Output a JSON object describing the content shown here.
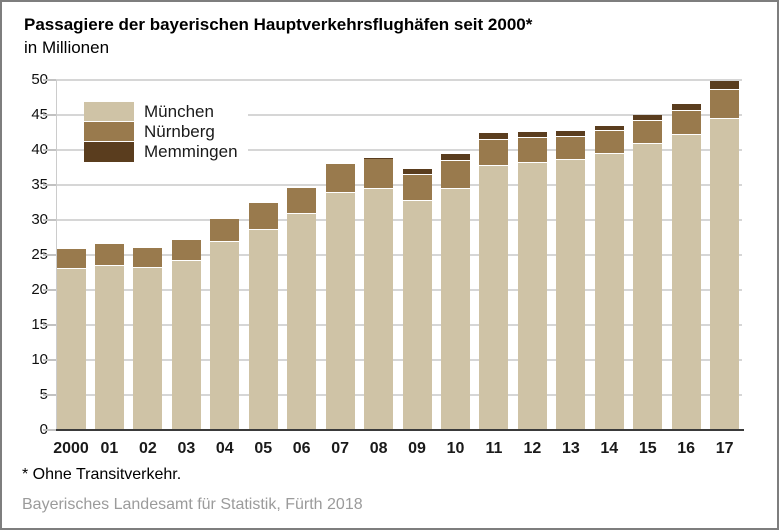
{
  "title": "Passagiere der bayerischen Hauptverkehrsflughäfen seit 2000*",
  "subtitle": "in Millionen",
  "footnote": "* Ohne Transitverkehr.",
  "source": "Bayerisches Landesamt für Statistik, Fürth 2018",
  "colors": {
    "muenchen": "#cfc3a6",
    "nuernberg": "#997a4d",
    "memmingen": "#5a3d1e",
    "gridline": "#d6d6d6",
    "axis": "#3a3a3a",
    "source_text": "#9b9b9b"
  },
  "chart_data": {
    "type": "bar",
    "stacked": true,
    "title": "Passagiere der bayerischen Hauptverkehrsflughäfen seit 2000*",
    "subtitle": "in Millionen",
    "unit": "Millionen Passagiere",
    "categories": [
      "2000",
      "01",
      "02",
      "03",
      "04",
      "05",
      "06",
      "07",
      "08",
      "09",
      "10",
      "11",
      "12",
      "13",
      "14",
      "15",
      "16",
      "17"
    ],
    "series": [
      {
        "name": "München",
        "color": "#cfc3a6",
        "values": [
          23.0,
          23.5,
          23.1,
          24.1,
          26.8,
          28.6,
          30.8,
          33.9,
          34.5,
          32.7,
          34.5,
          37.7,
          38.2,
          38.6,
          39.5,
          40.8,
          42.1,
          44.5
        ]
      },
      {
        "name": "Nürnberg",
        "color": "#997a4d",
        "values": [
          2.9,
          3.1,
          2.9,
          3.0,
          3.3,
          3.8,
          3.8,
          4.1,
          4.2,
          3.8,
          4.0,
          3.8,
          3.5,
          3.2,
          3.2,
          3.3,
          3.5,
          4.1
        ]
      },
      {
        "name": "Memmingen",
        "color": "#5a3d1e",
        "values": [
          0,
          0,
          0,
          0,
          0,
          0,
          0,
          0,
          0.2,
          0.8,
          0.9,
          0.9,
          0.9,
          0.9,
          0.8,
          0.9,
          1.0,
          1.2
        ]
      }
    ],
    "totals": [
      25.9,
      26.6,
      26.0,
      27.1,
      30.1,
      32.4,
      34.6,
      38.0,
      38.9,
      37.3,
      39.4,
      42.4,
      42.6,
      42.7,
      43.5,
      45.0,
      46.6,
      49.8
    ],
    "ylim": [
      0,
      50
    ],
    "yticks": [
      0,
      5,
      10,
      15,
      20,
      25,
      30,
      35,
      40,
      45,
      50
    ],
    "xlabel": "",
    "ylabel": "in Millionen",
    "grid": "horizontal",
    "legend_position": "inside-top-left"
  }
}
